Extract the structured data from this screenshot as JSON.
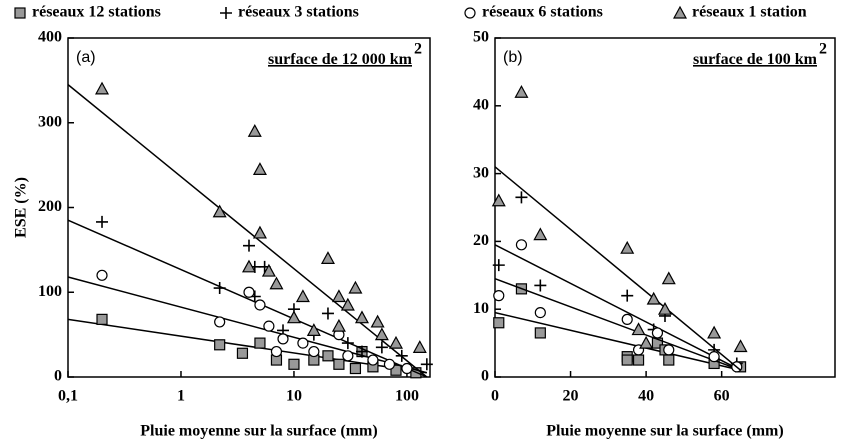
{
  "legend": [
    {
      "name": "réseaux 12 stations",
      "marker": "square"
    },
    {
      "name": "réseaux 3 stations",
      "marker": "plus"
    },
    {
      "name": "réseaux 6 stations",
      "marker": "circle"
    },
    {
      "name": "réseaux 1 station",
      "marker": "triangle"
    }
  ],
  "chart_data": [
    {
      "type": "scatter",
      "panel_label": "(a)",
      "annotation": "surface de 12 000 km",
      "annotation_sup": "2",
      "xlabel": "Pluie moyenne sur la surface (mm)",
      "ylabel": "ESE (%)",
      "xscale": "log",
      "xlim": [
        0.1,
        160
      ],
      "ylim": [
        0,
        400
      ],
      "xticks": [
        {
          "value": 0.1,
          "label": "0,1"
        },
        1,
        10,
        100
      ],
      "yticks": [
        0,
        100,
        200,
        300,
        400
      ],
      "series": [
        {
          "marker": "square",
          "color": "#999999",
          "x": [
            0.2,
            2.2,
            3.5,
            5,
            7,
            10,
            15,
            20,
            25,
            35,
            50,
            80,
            120,
            40
          ],
          "values": [
            68,
            38,
            28,
            40,
            20,
            15,
            20,
            25,
            15,
            10,
            12,
            8,
            5,
            30
          ],
          "fit_x": [
            0.1,
            150
          ],
          "fit_y": [
            68,
            5
          ]
        },
        {
          "marker": "plus",
          "color": "#000000",
          "x": [
            0.2,
            2.2,
            4,
            4.5,
            5.5,
            4.5,
            8,
            10,
            15,
            30,
            20,
            40,
            60,
            90,
            150
          ],
          "values": [
            183,
            105,
            155,
            130,
            130,
            95,
            55,
            80,
            50,
            40,
            75,
            30,
            35,
            25,
            15
          ],
          "fit_x": [
            0.1,
            150
          ],
          "fit_y": [
            185,
            0
          ]
        },
        {
          "marker": "circle",
          "color": "#ffffff",
          "x": [
            0.2,
            2.2,
            4,
            5,
            6,
            8,
            7,
            12,
            15,
            25,
            30,
            50,
            70,
            100
          ],
          "values": [
            120,
            65,
            100,
            85,
            60,
            45,
            30,
            40,
            30,
            50,
            25,
            20,
            15,
            10
          ],
          "fit_x": [
            0.1,
            150
          ],
          "fit_y": [
            118,
            5
          ]
        },
        {
          "marker": "triangle",
          "color": "#999999",
          "x": [
            0.2,
            2.2,
            4.5,
            5,
            5,
            4,
            6,
            7,
            12,
            10,
            20,
            25,
            35,
            30,
            40,
            55,
            60,
            80,
            130,
            25,
            15
          ],
          "values": [
            340,
            195,
            290,
            245,
            170,
            130,
            125,
            110,
            95,
            70,
            140,
            95,
            105,
            85,
            70,
            65,
            50,
            40,
            35,
            60,
            55
          ],
          "fit_x": [
            0.1,
            150
          ],
          "fit_y": [
            345,
            0
          ]
        }
      ]
    },
    {
      "type": "scatter",
      "panel_label": "(b)",
      "annotation": "surface de 100 km",
      "annotation_sup": "2",
      "xlabel": "Pluie moyenne sur la surface (mm)",
      "xscale": "linear",
      "xlim": [
        0,
        90
      ],
      "ylim": [
        0,
        50
      ],
      "xticks": [
        0,
        20,
        40,
        60
      ],
      "yticks": [
        0,
        10,
        20,
        30,
        40,
        50
      ],
      "series": [
        {
          "marker": "square",
          "color": "#999999",
          "x": [
            1,
            7,
            12,
            35,
            35,
            38,
            43,
            45,
            46,
            58,
            65
          ],
          "values": [
            8,
            13,
            6.5,
            3,
            2.5,
            2.5,
            5,
            4,
            2.5,
            2,
            1.5
          ],
          "fit_x": [
            0,
            65
          ],
          "fit_y": [
            9.5,
            1
          ]
        },
        {
          "marker": "plus",
          "color": "#000000",
          "x": [
            1,
            7,
            12,
            35,
            42,
            45,
            58,
            64
          ],
          "values": [
            16.5,
            26.5,
            13.5,
            12,
            7,
            9,
            4,
            2
          ],
          "fit_x": [
            0,
            65
          ],
          "fit_y": [
            19.5,
            1
          ]
        },
        {
          "marker": "circle",
          "color": "#ffffff",
          "x": [
            1,
            7,
            12,
            35,
            38,
            43,
            46,
            58,
            64
          ],
          "values": [
            12,
            19.5,
            9.5,
            8.5,
            4,
            6.5,
            4,
            3,
            1.5
          ],
          "fit_x": [
            0,
            65
          ],
          "fit_y": [
            14.5,
            1
          ]
        },
        {
          "marker": "triangle",
          "color": "#999999",
          "x": [
            1,
            7,
            12,
            35,
            38,
            42,
            45,
            46,
            58,
            65,
            40
          ],
          "values": [
            26,
            42,
            21,
            19,
            7,
            11.5,
            10,
            14.5,
            6.5,
            4.5,
            5
          ],
          "fit_x": [
            0,
            65
          ],
          "fit_y": [
            31,
            1
          ]
        }
      ]
    }
  ]
}
